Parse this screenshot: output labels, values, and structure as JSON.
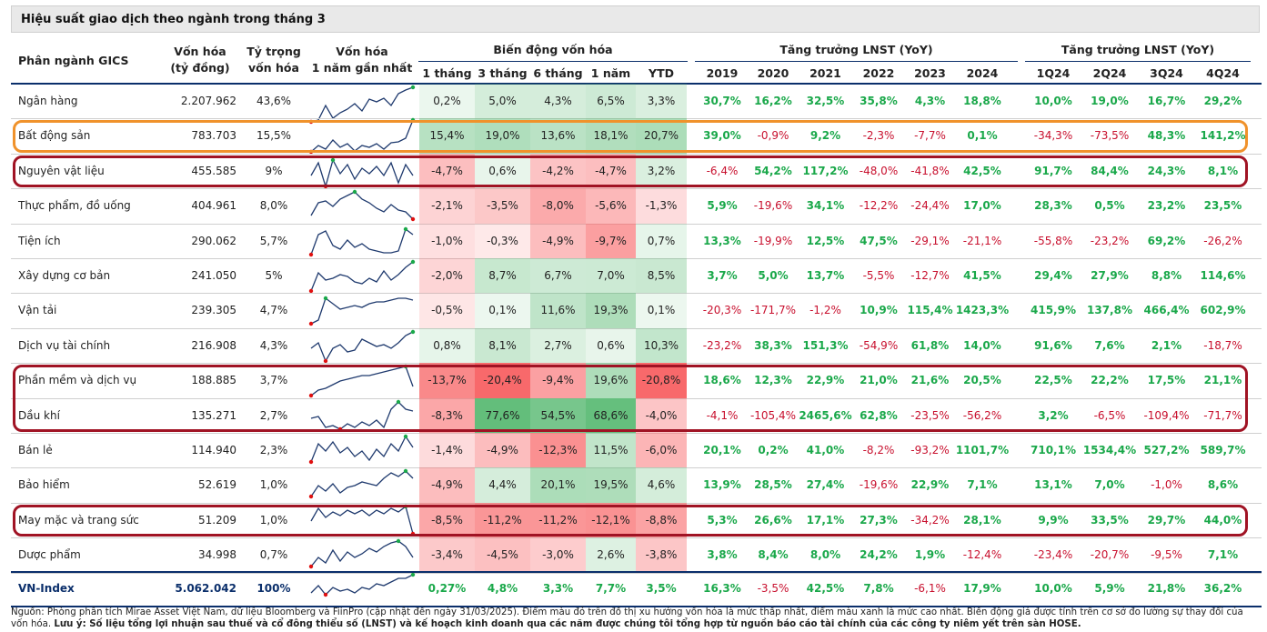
{
  "title": "Hiệu suất giao dịch theo ngành trong tháng 3",
  "headers": {
    "sector": "Phân ngành GICS",
    "cap_l1": "Vốn hóa",
    "cap_l2": "(tỷ đồng)",
    "weight_l1": "Tỷ trọng",
    "weight_l2": "vốn hóa",
    "spark_l1": "Vốn hóa",
    "spark_l2": "1 năm gần nhất",
    "change_group": "Biến động vốn hóa",
    "lnst_group": "Tăng trưởng LNST (YoY)",
    "quarter_group": "Tăng trưởng LNST (YoY)",
    "change_cols": [
      "1 tháng",
      "3 tháng",
      "6 tháng",
      "1 năm",
      "YTD"
    ],
    "year_cols": [
      "2019",
      "2020",
      "2021",
      "2022",
      "2023",
      "2024"
    ],
    "quarter_cols": [
      "1Q24",
      "2Q24",
      "3Q24",
      "4Q24"
    ]
  },
  "colors": {
    "positive": "#1aa84a",
    "negative": "#c8102e",
    "highlight_orange": "#f0922b",
    "highlight_red": "#a01324",
    "header_line": "#0b2f6b"
  },
  "rows": [
    {
      "name": "Ngân hàng",
      "cap": "2.207.962",
      "weight": "43,6%",
      "spark": [
        40,
        38,
        22,
        36,
        30,
        26,
        20,
        28,
        15,
        18,
        14,
        22,
        9,
        5,
        2
      ],
      "change": [
        "0,2%",
        "5,0%",
        "4,3%",
        "6,5%",
        "3,3%"
      ],
      "change_v": [
        0.2,
        5.0,
        4.3,
        6.5,
        3.3
      ],
      "years": [
        "30,7%",
        "16,2%",
        "32,5%",
        "35,8%",
        "4,3%",
        "18,8%"
      ],
      "quarters": [
        "10,0%",
        "19,0%",
        "16,7%",
        "29,2%"
      ]
    },
    {
      "name": "Bất động sản",
      "cap": "783.703",
      "weight": "15,5%",
      "spark": [
        35,
        28,
        32,
        22,
        30,
        26,
        34,
        28,
        30,
        26,
        32,
        25,
        24,
        20,
        0
      ],
      "change": [
        "15,4%",
        "19,0%",
        "13,6%",
        "18,1%",
        "20,7%"
      ],
      "change_v": [
        15.4,
        19.0,
        13.6,
        18.1,
        20.7
      ],
      "years": [
        "39,0%",
        "-0,9%",
        "9,2%",
        "-2,3%",
        "-7,7%",
        "0,1%"
      ],
      "quarters": [
        "-34,3%",
        "-73,5%",
        "48,3%",
        "141,2%"
      ]
    },
    {
      "name": "Nguyên vật liệu",
      "cap": "455.585",
      "weight": "9%",
      "spark": [
        22,
        8,
        34,
        5,
        20,
        10,
        26,
        14,
        20,
        12,
        22,
        8,
        30,
        10,
        22
      ],
      "change": [
        "-4,7%",
        "0,6%",
        "-4,2%",
        "-4,7%",
        "3,2%"
      ],
      "change_v": [
        -4.7,
        0.6,
        -4.2,
        -4.7,
        3.2
      ],
      "years": [
        "-6,4%",
        "54,2%",
        "117,2%",
        "-48,0%",
        "-41,8%",
        "42,5%"
      ],
      "quarters": [
        "91,7%",
        "84,4%",
        "24,3%",
        "8,1%"
      ]
    },
    {
      "name": "Thực phẩm, đồ uống",
      "cap": "404.961",
      "weight": "8,0%",
      "spark": [
        28,
        14,
        12,
        18,
        10,
        6,
        2,
        10,
        14,
        20,
        24,
        16,
        22,
        24,
        32
      ],
      "change": [
        "-2,1%",
        "-3,5%",
        "-8,0%",
        "-5,6%",
        "-1,3%"
      ],
      "change_v": [
        -2.1,
        -3.5,
        -8.0,
        -5.6,
        -1.3
      ],
      "years": [
        "5,9%",
        "-19,6%",
        "34,1%",
        "-12,2%",
        "-24,4%",
        "17,0%"
      ],
      "quarters": [
        "28,3%",
        "0,5%",
        "23,2%",
        "23,5%"
      ]
    },
    {
      "name": "Tiện ích",
      "cap": "290.062",
      "weight": "5,7%",
      "spark": [
        32,
        10,
        6,
        22,
        26,
        16,
        24,
        20,
        26,
        28,
        30,
        30,
        28,
        4,
        10
      ],
      "change": [
        "-1,0%",
        "-0,3%",
        "-4,9%",
        "-9,7%",
        "0,7%"
      ],
      "change_v": [
        -1.0,
        -0.3,
        -4.9,
        -9.7,
        0.7
      ],
      "years": [
        "13,3%",
        "-19,9%",
        "12,5%",
        "47,5%",
        "-29,1%",
        "-21,1%"
      ],
      "quarters": [
        "-55,8%",
        "-23,2%",
        "69,2%",
        "-26,2%"
      ]
    },
    {
      "name": "Xây dựng cơ bản",
      "cap": "241.050",
      "weight": "5%",
      "spark": [
        34,
        14,
        22,
        20,
        16,
        18,
        24,
        26,
        20,
        24,
        12,
        22,
        16,
        8,
        2
      ],
      "change": [
        "-2,0%",
        "8,7%",
        "6,7%",
        "7,0%",
        "8,5%"
      ],
      "change_v": [
        -2.0,
        8.7,
        6.7,
        7.0,
        8.5
      ],
      "years": [
        "3,7%",
        "5,0%",
        "13,7%",
        "-5,5%",
        "-12,7%",
        "41,5%"
      ],
      "quarters": [
        "29,4%",
        "27,9%",
        "8,8%",
        "114,6%"
      ]
    },
    {
      "name": "Vận tải",
      "cap": "239.305",
      "weight": "4,7%",
      "spark": [
        32,
        28,
        4,
        10,
        16,
        14,
        12,
        14,
        10,
        8,
        8,
        6,
        4,
        4,
        6
      ],
      "change": [
        "-0,5%",
        "0,1%",
        "11,6%",
        "19,3%",
        "0,1%"
      ],
      "change_v": [
        -0.5,
        0.1,
        11.6,
        19.3,
        0.1
      ],
      "years": [
        "-20,3%",
        "-171,7%",
        "-1,2%",
        "10,9%",
        "115,4%",
        "1423,3%"
      ],
      "quarters": [
        "415,9%",
        "137,8%",
        "466,4%",
        "602,9%"
      ]
    },
    {
      "name": "Dịch vụ tài chính",
      "cap": "216.908",
      "weight": "4,3%",
      "spark": [
        20,
        14,
        34,
        20,
        16,
        24,
        22,
        10,
        14,
        18,
        16,
        20,
        14,
        6,
        2
      ],
      "change": [
        "0,8%",
        "8,1%",
        "2,7%",
        "0,6%",
        "10,3%"
      ],
      "change_v": [
        0.8,
        8.1,
        2.7,
        0.6,
        10.3
      ],
      "years": [
        "-23,2%",
        "38,3%",
        "151,3%",
        "-54,9%",
        "61,8%",
        "14,0%"
      ],
      "quarters": [
        "91,6%",
        "7,6%",
        "2,1%",
        "-18,7%"
      ]
    },
    {
      "name": "Phần mềm và dịch vụ",
      "cap": "188.885",
      "weight": "3,7%",
      "spark": [
        34,
        28,
        26,
        22,
        18,
        16,
        14,
        12,
        12,
        10,
        8,
        6,
        4,
        2,
        24
      ],
      "change": [
        "-13,7%",
        "-20,4%",
        "-9,4%",
        "19,6%",
        "-20,8%"
      ],
      "change_v": [
        -13.7,
        -20.4,
        -9.4,
        19.6,
        -20.8
      ],
      "years": [
        "18,6%",
        "12,3%",
        "22,9%",
        "21,0%",
        "21,6%",
        "20,5%"
      ],
      "quarters": [
        "22,5%",
        "22,2%",
        "17,5%",
        "21,1%"
      ]
    },
    {
      "name": "Dầu khí",
      "cap": "135.271",
      "weight": "2,7%",
      "spark": [
        20,
        18,
        30,
        28,
        32,
        26,
        30,
        24,
        28,
        22,
        30,
        10,
        2,
        10,
        12
      ],
      "change": [
        "-8,3%",
        "77,6%",
        "54,5%",
        "68,6%",
        "-4,0%"
      ],
      "change_v": [
        -8.3,
        77.6,
        54.5,
        68.6,
        -4.0
      ],
      "years": [
        "-4,1%",
        "-105,4%",
        "2465,6%",
        "62,8%",
        "-23,5%",
        "-56,2%"
      ],
      "quarters": [
        "3,2%",
        "-6,5%",
        "-109,4%",
        "-71,7%"
      ]
    },
    {
      "name": "Bán lẻ",
      "cap": "114.940",
      "weight": "2,3%",
      "spark": [
        30,
        10,
        18,
        8,
        20,
        14,
        24,
        18,
        28,
        16,
        24,
        10,
        18,
        2,
        14
      ],
      "change": [
        "-1,4%",
        "-4,9%",
        "-12,3%",
        "11,5%",
        "-6,0%"
      ],
      "change_v": [
        -1.4,
        -4.9,
        -12.3,
        11.5,
        -6.0
      ],
      "years": [
        "20,1%",
        "0,2%",
        "41,0%",
        "-8,2%",
        "-93,2%",
        "1101,7%"
      ],
      "quarters": [
        "710,1%",
        "1534,4%",
        "527,2%",
        "589,7%"
      ]
    },
    {
      "name": "Bảo hiểm",
      "cap": "52.619",
      "weight": "1,0%",
      "spark": [
        30,
        18,
        24,
        16,
        26,
        20,
        18,
        14,
        16,
        18,
        10,
        4,
        8,
        2,
        10
      ],
      "change": [
        "-4,9%",
        "4,4%",
        "20,1%",
        "19,5%",
        "4,6%"
      ],
      "change_v": [
        -4.9,
        4.4,
        20.1,
        19.5,
        4.6
      ],
      "years": [
        "13,9%",
        "28,5%",
        "27,4%",
        "-19,6%",
        "22,9%",
        "7,1%"
      ],
      "quarters": [
        "13,1%",
        "7,0%",
        "-1,0%",
        "8,6%"
      ]
    },
    {
      "name": "May mặc và trang sức",
      "cap": "51.209",
      "weight": "1,0%",
      "spark": [
        18,
        4,
        14,
        8,
        12,
        6,
        10,
        6,
        12,
        6,
        10,
        4,
        8,
        2,
        32
      ],
      "change": [
        "-8,5%",
        "-11,2%",
        "-11,2%",
        "-12,1%",
        "-8,8%"
      ],
      "change_v": [
        -8.5,
        -11.2,
        -11.2,
        -12.1,
        -8.8
      ],
      "years": [
        "5,3%",
        "26,6%",
        "17,1%",
        "27,3%",
        "-34,2%",
        "28,1%"
      ],
      "quarters": [
        "9,9%",
        "33,5%",
        "29,7%",
        "44,0%"
      ]
    },
    {
      "name": "Dược phẩm",
      "cap": "34.998",
      "weight": "0,7%",
      "spark": [
        30,
        20,
        26,
        12,
        24,
        14,
        20,
        16,
        10,
        14,
        8,
        4,
        2,
        8,
        20
      ],
      "change": [
        "-3,4%",
        "-4,5%",
        "-3,0%",
        "2,6%",
        "-3,8%"
      ],
      "change_v": [
        -3.4,
        -4.5,
        -3.0,
        2.6,
        -3.8
      ],
      "years": [
        "3,8%",
        "8,4%",
        "8,0%",
        "24,2%",
        "1,9%",
        "-12,4%"
      ],
      "quarters": [
        "-23,4%",
        "-20,7%",
        "-9,5%",
        "7,1%"
      ]
    }
  ],
  "total": {
    "name": "VN-Index",
    "cap": "5.062.042",
    "weight": "100%",
    "spark": [
      22,
      14,
      24,
      16,
      20,
      18,
      22,
      16,
      18,
      12,
      14,
      10,
      6,
      6,
      2
    ],
    "change": [
      "0,27%",
      "4,8%",
      "3,3%",
      "7,7%",
      "3,5%"
    ],
    "years": [
      "16,3%",
      "-3,5%",
      "42,5%",
      "7,8%",
      "-6,1%",
      "17,9%"
    ],
    "quarters": [
      "10,0%",
      "5,9%",
      "21,8%",
      "36,2%"
    ]
  },
  "footer": {
    "source": "Nguồn: Phòng phân tích Mirae Asset Việt Nam, dữ liệu Bloomberg và FiinPro (cập nhật đến ngày 31/03/2025). Điểm màu đỏ trên đồ thị xu hướng vốn hóa là mức thấp nhất, điểm màu xanh là mức cao nhất. Biến động giá được tính trên cơ sở đo lường sự thay đổi của vốn hóa.",
    "note_label": "Lưu ý:",
    "note": " Số liệu tổng lợi nhuận sau thuế và cổ đông thiểu số (LNST) và kế hoạch kinh doanh qua các năm được chúng tôi tổng hợp từ nguồn báo cáo tài chính của các công ty niêm yết trên sàn HOSE."
  }
}
